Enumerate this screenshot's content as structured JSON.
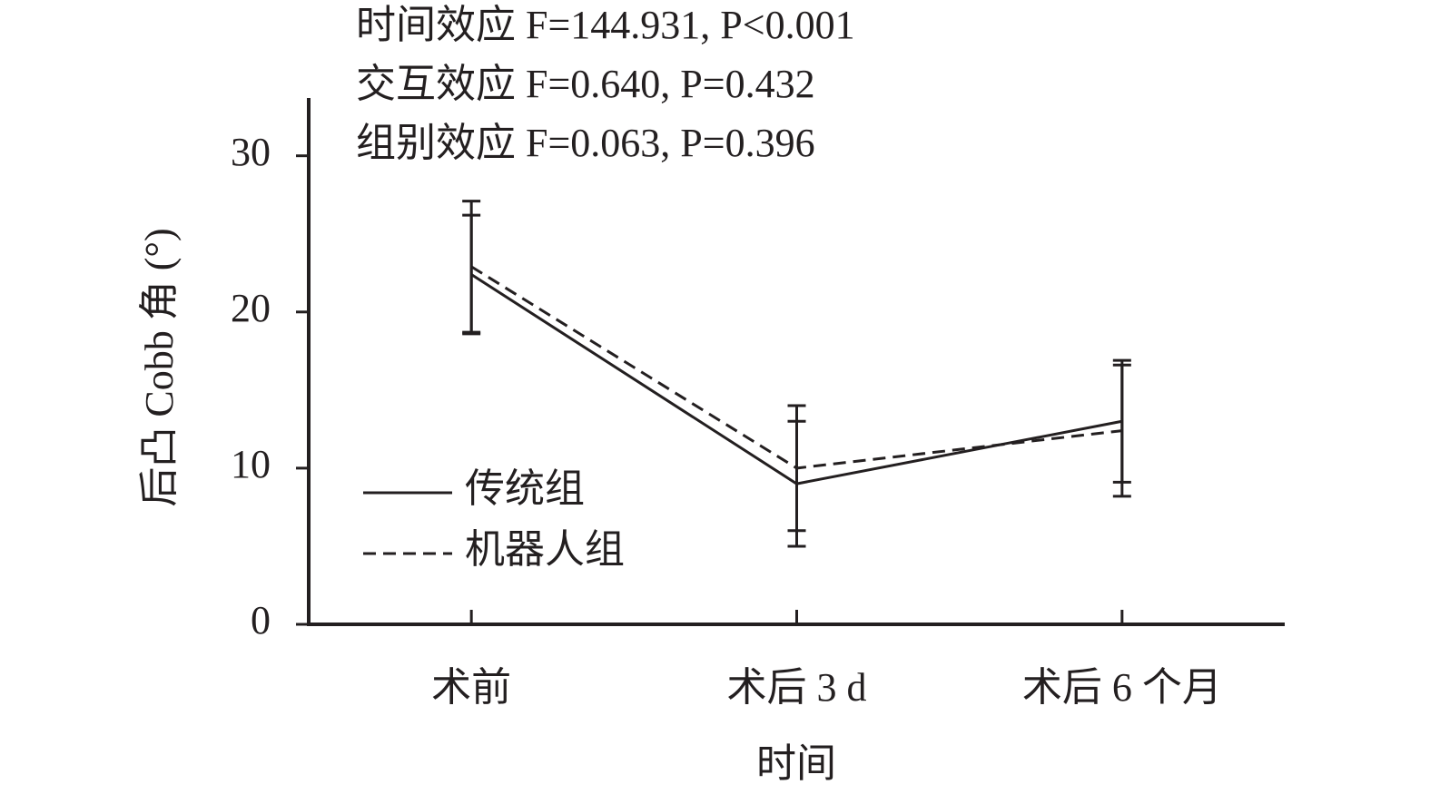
{
  "chart_data": {
    "type": "line",
    "annotations": [
      "时间效应 F=144.931, P<0.001",
      "交互效应 F=0.640, P=0.432",
      "组别效应 F=0.063, P=0.396"
    ],
    "x_label": "时间",
    "y_label": "后凸 Cobb 角 (°)",
    "categories": [
      "术前",
      "术后 3 d",
      "术后 6 个月"
    ],
    "series": [
      {
        "name": "传统组",
        "color": "#231f20",
        "dash": "solid",
        "values": [
          22.4,
          9.0,
          13.0
        ],
        "errors": [
          3.8,
          4.0,
          3.9
        ]
      },
      {
        "name": "机器人组",
        "color": "#231f20",
        "dash": "dashed",
        "values": [
          22.9,
          10.0,
          12.4
        ],
        "errors": [
          4.2,
          4.0,
          4.2
        ]
      }
    ],
    "ylim": [
      0,
      33.7
    ],
    "yticks": [
      0,
      10,
      20,
      30
    ],
    "grid": false,
    "legend": "lower left"
  }
}
